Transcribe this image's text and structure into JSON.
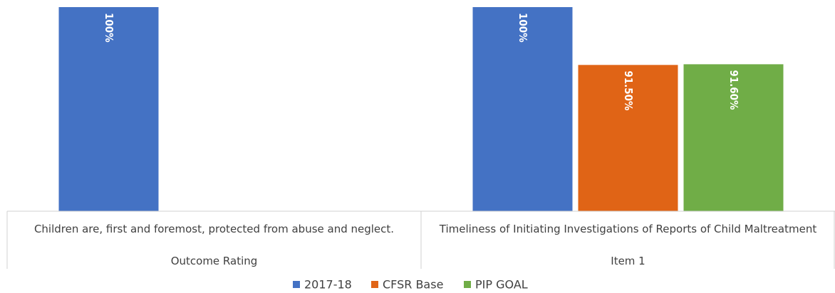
{
  "chart_data": {
    "type": "bar",
    "categories": [
      "Children are, first and foremost, protected from abuse and neglect.",
      "Timeliness of Initiating Investigations of Reports of Child Maltreatment"
    ],
    "category_groups": [
      "Outcome Rating",
      "Item 1"
    ],
    "series": [
      {
        "name": "2017-18",
        "color": "#4472c4",
        "values": [
          100,
          100
        ],
        "value_labels": [
          "100%",
          "100%"
        ]
      },
      {
        "name": "CFSR Base",
        "color": "#e06416",
        "values": [
          null,
          91.5
        ],
        "value_labels": [
          null,
          "91.50%"
        ]
      },
      {
        "name": "PIP GOAL",
        "color": "#70ad47",
        "values": [
          null,
          91.6
        ],
        "value_labels": [
          null,
          "91.60%"
        ]
      }
    ],
    "ylim": [
      70,
      100
    ]
  }
}
